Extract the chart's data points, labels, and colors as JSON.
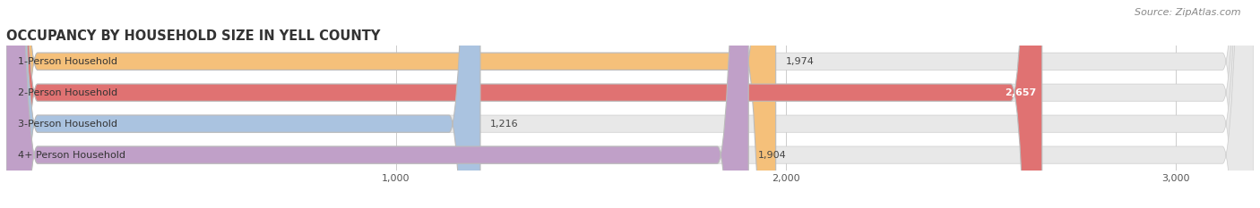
{
  "title": "OCCUPANCY BY HOUSEHOLD SIZE IN YELL COUNTY",
  "source": "Source: ZipAtlas.com",
  "categories": [
    "1-Person Household",
    "2-Person Household",
    "3-Person Household",
    "4+ Person Household"
  ],
  "values": [
    1974,
    2657,
    1216,
    1904
  ],
  "bar_colors": [
    "#f5c07a",
    "#e07272",
    "#aac3e0",
    "#c0a0c8"
  ],
  "value_colors": [
    "#555555",
    "#ffffff",
    "#555555",
    "#555555"
  ],
  "xlim_max": 3200,
  "xticks": [
    1000,
    2000,
    3000
  ],
  "title_fontsize": 10.5,
  "label_fontsize": 8,
  "value_fontsize": 8,
  "source_fontsize": 8,
  "background_color": "#ffffff",
  "bar_bg_color": "#e8e8e8"
}
